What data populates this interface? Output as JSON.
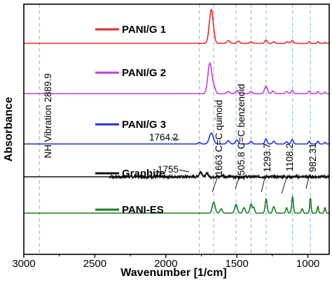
{
  "chart_data": {
    "type": "line",
    "xlabel": "Wavenumber [1/cm]",
    "ylabel": "Absorbance",
    "xlim": [
      3000,
      850
    ],
    "x_reversed": true,
    "xticks": [
      3000,
      2500,
      2000,
      1500,
      1000
    ],
    "y_ticks_shown": false,
    "grid_vertical_dashed": [
      2889.9,
      1764.2,
      1663,
      1505.8,
      1400,
      1293.7,
      1108.2,
      982.31
    ],
    "grid_color": "#7fb8e0",
    "series": [
      {
        "name": "PANI/G 1",
        "color": "#e8282b",
        "baseline": 0,
        "peaks": [
          [
            1680,
            62,
            14
          ],
          [
            1560,
            5,
            10
          ],
          [
            1490,
            4,
            10
          ],
          [
            1400,
            3,
            8
          ],
          [
            1295,
            6,
            8
          ],
          [
            1240,
            3,
            8
          ],
          [
            1145,
            3,
            8
          ],
          [
            1110,
            5,
            8
          ],
          [
            990,
            3,
            6
          ],
          [
            930,
            3,
            6
          ],
          [
            880,
            2,
            5
          ]
        ]
      },
      {
        "name": "PANI/G 2",
        "color": "#c23cd9",
        "baseline": -72,
        "peaks": [
          [
            1690,
            56,
            14
          ],
          [
            1660,
            10,
            10
          ],
          [
            1560,
            4,
            10
          ],
          [
            1500,
            5,
            10
          ],
          [
            1400,
            4,
            8
          ],
          [
            1295,
            14,
            10
          ],
          [
            1245,
            5,
            8
          ],
          [
            1150,
            4,
            8
          ],
          [
            1110,
            6,
            8
          ],
          [
            990,
            5,
            6
          ],
          [
            930,
            4,
            6
          ],
          [
            880,
            3,
            5
          ]
        ]
      },
      {
        "name": "PANI/G 3",
        "color": "#2030d8",
        "baseline": -144,
        "peaks": [
          [
            1764.2,
            3,
            8
          ],
          [
            1680,
            20,
            14
          ],
          [
            1560,
            6,
            10
          ],
          [
            1500,
            7,
            10
          ],
          [
            1400,
            5,
            8
          ],
          [
            1295,
            9,
            8
          ],
          [
            1240,
            5,
            8
          ],
          [
            1150,
            4,
            8
          ],
          [
            1110,
            8,
            8
          ],
          [
            990,
            5,
            6
          ],
          [
            930,
            5,
            6
          ],
          [
            880,
            3,
            5
          ]
        ]
      },
      {
        "name": "Graphite",
        "color": "#111111",
        "baseline": -197,
        "noise": 2.2,
        "peaks": [
          [
            1755,
            9,
            10
          ],
          [
            1710,
            7,
            8
          ],
          [
            1600,
            3,
            10
          ]
        ]
      },
      {
        "name": "PANI-ES",
        "color": "#1d7a22",
        "baseline": -249,
        "peaks": [
          [
            1663,
            20,
            10
          ],
          [
            1610,
            8,
            8
          ],
          [
            1505.8,
            16,
            9
          ],
          [
            1450,
            10,
            8
          ],
          [
            1400,
            17,
            8
          ],
          [
            1380,
            10,
            6
          ],
          [
            1293.7,
            26,
            7
          ],
          [
            1240,
            12,
            8
          ],
          [
            1150,
            10,
            6
          ],
          [
            1108.2,
            30,
            6
          ],
          [
            1040,
            8,
            6
          ],
          [
            982.31,
            28,
            5
          ],
          [
            930,
            12,
            5
          ],
          [
            880,
            10,
            5
          ]
        ]
      }
    ],
    "annotations": [
      {
        "text": "NH Vibration 2889.9",
        "x": 2889.9,
        "orientation": "vertical"
      },
      {
        "text": "1764.2",
        "x": 1764.2,
        "series": "PANI/G 3",
        "orientation": "horizontal"
      },
      {
        "text": "1755",
        "x": 1755,
        "series": "Graphite",
        "orientation": "horizontal"
      },
      {
        "text": "1663 C=C quinoid",
        "x": 1663,
        "orientation": "vertical"
      },
      {
        "text": "1505.8 C=C benzenoid",
        "x": 1505.8,
        "orientation": "vertical"
      },
      {
        "text": "1293.7",
        "x": 1293.7,
        "orientation": "vertical"
      },
      {
        "text": "1108.2",
        "x": 1108.2,
        "orientation": "vertical"
      },
      {
        "text": "982.31",
        "x": 982.31,
        "orientation": "vertical"
      }
    ]
  }
}
